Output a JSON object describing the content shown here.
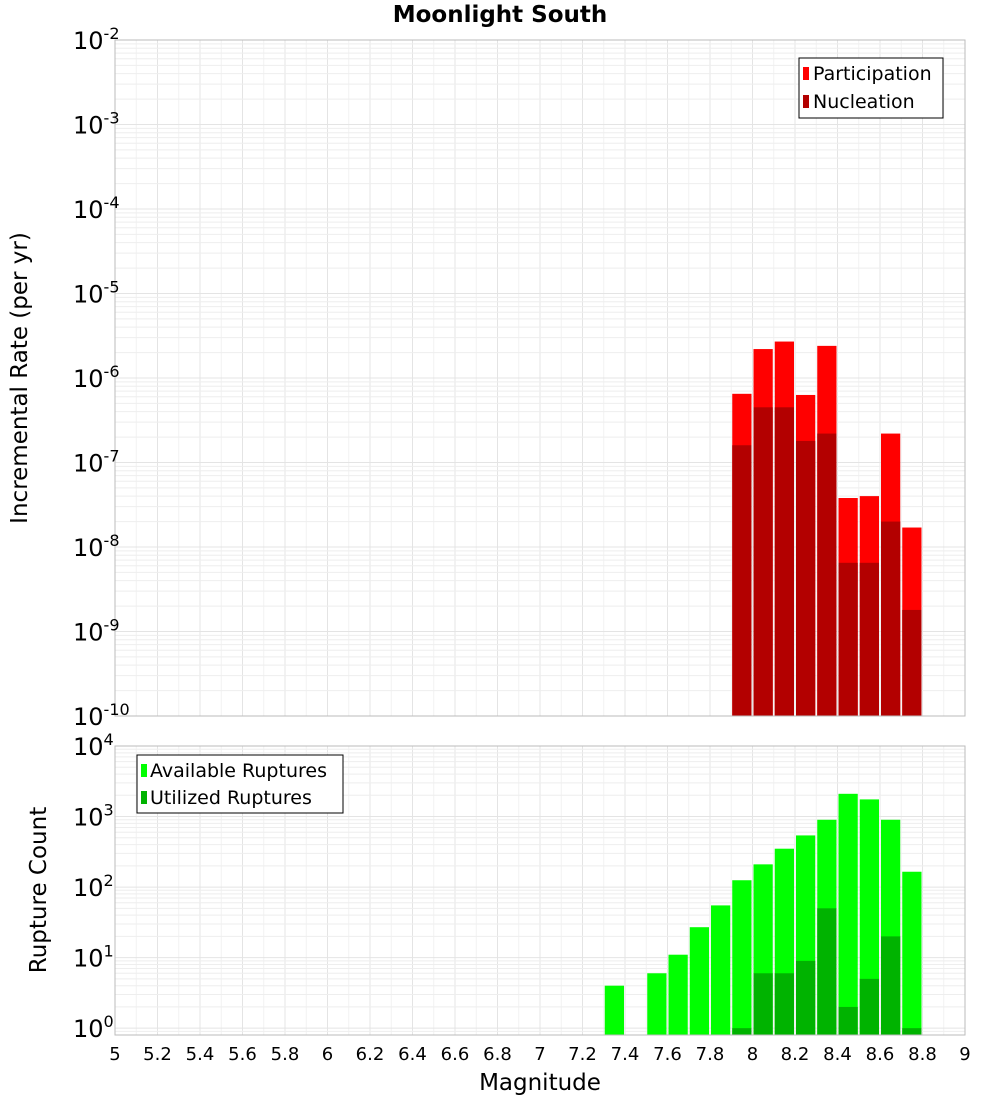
{
  "chart_data": [
    {
      "type": "bar",
      "title": "Moonlight South",
      "xlabel": "",
      "ylabel": "Incremental Rate (per yr)",
      "yscale": "log",
      "ylim": [
        1e-10,
        0.01
      ],
      "xlim": [
        5,
        9
      ],
      "y_ticks": [
        {
          "base": "10",
          "exp": "-2"
        },
        {
          "base": "10",
          "exp": "-3"
        },
        {
          "base": "10",
          "exp": "-4"
        },
        {
          "base": "10",
          "exp": "-5"
        },
        {
          "base": "10",
          "exp": "-6"
        },
        {
          "base": "10",
          "exp": "-7"
        },
        {
          "base": "10",
          "exp": "-8"
        },
        {
          "base": "10",
          "exp": "-9"
        },
        {
          "base": "10",
          "exp": "-10"
        }
      ],
      "grid": true,
      "legend_position": "top-right",
      "x": [
        7.95,
        8.05,
        8.15,
        8.25,
        8.35,
        8.45,
        8.55,
        8.65,
        8.75
      ],
      "series": [
        {
          "name": "Participation",
          "color": "#ff0000",
          "values": [
            6.5e-07,
            2.2e-06,
            2.7e-06,
            6.3e-07,
            2.4e-06,
            3.8e-08,
            4e-08,
            2.2e-07,
            1.7e-08
          ]
        },
        {
          "name": "Nucleation",
          "color": "#b30000",
          "values": [
            1.6e-07,
            4.5e-07,
            4.5e-07,
            1.8e-07,
            2.2e-07,
            6.5e-09,
            6.5e-09,
            2e-08,
            1.8e-09
          ]
        }
      ]
    },
    {
      "type": "bar",
      "title": "",
      "xlabel": "Magnitude",
      "ylabel": "Rupture Count",
      "yscale": "log",
      "ylim": [
        0.8,
        10000
      ],
      "xlim": [
        5,
        9
      ],
      "x_ticks": [
        "5",
        "5.2",
        "5.4",
        "5.6",
        "5.8",
        "6",
        "6.2",
        "6.4",
        "6.6",
        "6.8",
        "7",
        "7.2",
        "7.4",
        "7.6",
        "7.8",
        "8",
        "8.2",
        "8.4",
        "8.6",
        "8.8",
        "9"
      ],
      "y_ticks": [
        {
          "base": "10",
          "exp": "4"
        },
        {
          "base": "10",
          "exp": "3"
        },
        {
          "base": "10",
          "exp": "2"
        },
        {
          "base": "10",
          "exp": "1"
        },
        {
          "base": "10",
          "exp": "0"
        }
      ],
      "grid": true,
      "legend_position": "top-left",
      "series": [
        {
          "name": "Available Ruptures",
          "color": "#00ff00",
          "x": [
            7.35,
            7.55,
            7.65,
            7.75,
            7.85,
            7.95,
            8.05,
            8.15,
            8.25,
            8.35,
            8.45,
            8.55,
            8.65,
            8.75
          ],
          "values": [
            4,
            6,
            11,
            27,
            55,
            125,
            210,
            350,
            540,
            900,
            2100,
            1750,
            900,
            165
          ]
        },
        {
          "name": "Utilized Ruptures",
          "color": "#00b300",
          "x": [
            7.95,
            8.05,
            8.15,
            8.25,
            8.35,
            8.45,
            8.55,
            8.65,
            8.75
          ],
          "values": [
            1,
            6,
            6,
            9,
            50,
            2,
            5,
            20,
            1
          ]
        }
      ]
    }
  ]
}
